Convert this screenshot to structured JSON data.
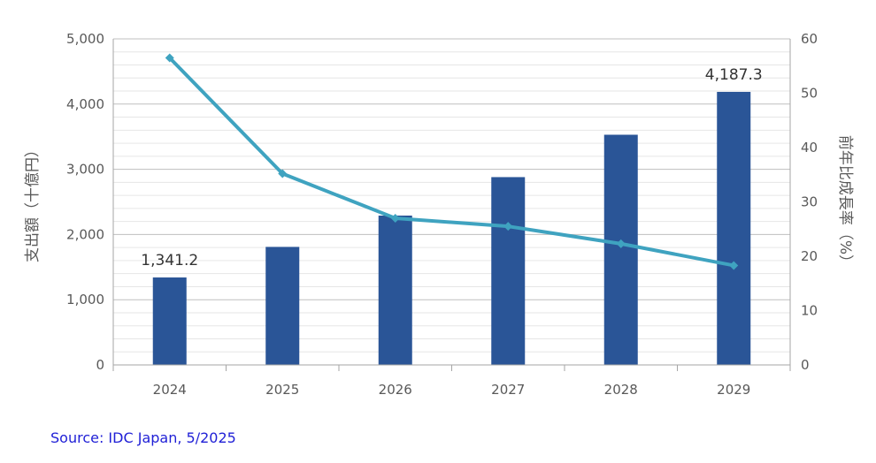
{
  "chart_data": {
    "type": "bar",
    "categories": [
      "2024",
      "2025",
      "2026",
      "2027",
      "2028",
      "2029"
    ],
    "series": [
      {
        "values": [
          1341.2,
          1810,
          2290,
          2880,
          3530,
          4187.3
        ],
        "color": "#2a5597",
        "axis": "left",
        "kind": "bar"
      },
      {
        "values": [
          56.5,
          35.2,
          27.0,
          25.5,
          22.3,
          18.3
        ],
        "color": "#3fa3c0",
        "axis": "right",
        "kind": "line"
      }
    ],
    "data_labels": [
      {
        "index": 0,
        "text": "1,341.2"
      },
      {
        "index": 5,
        "text": "4,187.3"
      }
    ],
    "ylabel": "支出額（十億円）",
    "y2label": "前年比成長率（%）",
    "ylim": [
      0,
      5000
    ],
    "y2lim": [
      0,
      60
    ],
    "yticks": [
      "0",
      "1,000",
      "2,000",
      "3,000",
      "4,000",
      "5,000"
    ],
    "y2ticks": [
      "0",
      "10",
      "20",
      "30",
      "40",
      "50",
      "60"
    ],
    "minor_grid_step": 200,
    "grid": true
  },
  "source": {
    "text": "Source: IDC Japan, 5/2025",
    "color": "#1f1fd6"
  }
}
